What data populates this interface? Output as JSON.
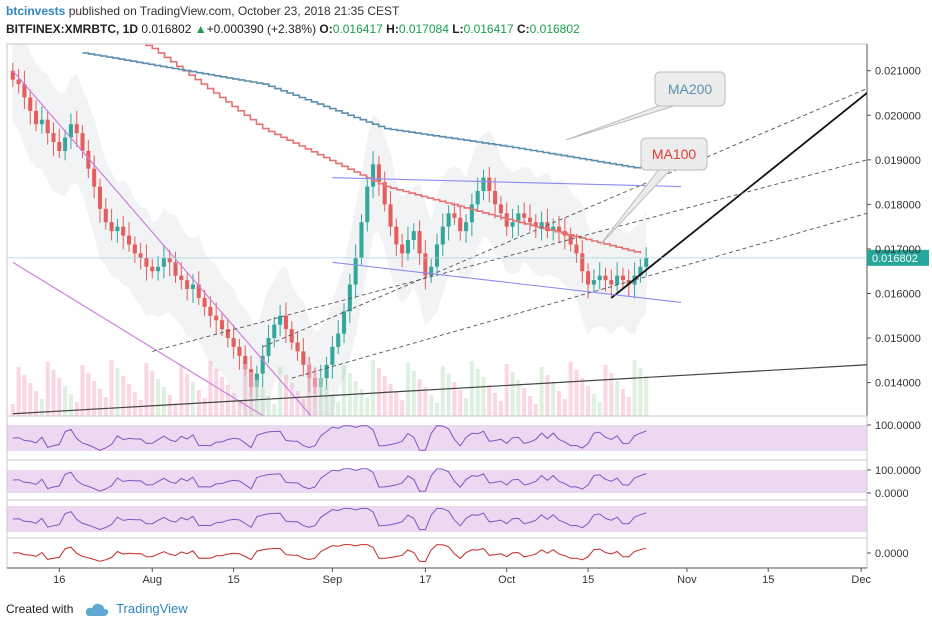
{
  "header": {
    "author": "btcinvests",
    "published_text": "published on TradingView.com, October 23, 2018 21:35 CEST",
    "symbol": "BITFINEX:XMRBTC, 1D",
    "last": "0.016802",
    "change": "+0.000390 (+2.38%)",
    "open_label": "O:",
    "open": "0.016417",
    "high_label": "H:",
    "high": "0.017084",
    "low_label": "L:",
    "low": "0.016417",
    "close_label": "C:",
    "close": "0.016802"
  },
  "footer": {
    "created_with": "Created with",
    "brand": "TradingView"
  },
  "colors": {
    "up": "#26a69a",
    "down": "#ef5350",
    "ma100": "#e57373",
    "ma200": "#5b8fb0",
    "price_tag": "#26a69a",
    "oscillator_band": "#e1bee7",
    "channel": "#8c8cf2"
  },
  "chart_data": {
    "type": "candlestick",
    "y_axis": {
      "ticks": [
        "0.021000",
        "0.020000",
        "0.019000",
        "0.018000",
        "0.017000",
        "0.016000",
        "0.015000",
        "0.014000"
      ],
      "tick_values": [
        0.021,
        0.02,
        0.019,
        0.018,
        0.017,
        0.016,
        0.015,
        0.014
      ],
      "range": [
        0.01325,
        0.0216
      ]
    },
    "x_axis": {
      "ticks": [
        "16",
        "Aug",
        "15",
        "Sep",
        "17",
        "Oct",
        "15",
        "Nov",
        "15",
        "Dec"
      ],
      "tick_dates": [
        "2018-07-16",
        "2018-08-01",
        "2018-08-15",
        "2018-09-01",
        "2018-09-17",
        "2018-10-01",
        "2018-10-15",
        "2018-11-01",
        "2018-11-15",
        "2018-12-01"
      ],
      "range": [
        "2018-07-07",
        "2018-12-02"
      ]
    },
    "last_price_label": "0.016802",
    "annotations": [
      {
        "text": "MA200",
        "color": "#5b8fb0"
      },
      {
        "text": "MA100",
        "color": "#e53935"
      }
    ],
    "close_series": {
      "start": "2018-07-08",
      "values": [
        0.0208,
        0.0207,
        0.0204,
        0.0201,
        0.0198,
        0.0199,
        0.0196,
        0.0194,
        0.0192,
        0.0195,
        0.0198,
        0.0196,
        0.0192,
        0.0188,
        0.0184,
        0.0179,
        0.0176,
        0.0174,
        0.0175,
        0.0173,
        0.0171,
        0.0169,
        0.0168,
        0.0166,
        0.0165,
        0.0166,
        0.0168,
        0.0167,
        0.0164,
        0.0163,
        0.0161,
        0.0162,
        0.0159,
        0.0157,
        0.0155,
        0.0154,
        0.0152,
        0.015,
        0.0148,
        0.0146,
        0.0143,
        0.0139,
        0.0142,
        0.0146,
        0.015,
        0.0153,
        0.0155,
        0.0152,
        0.0149,
        0.0147,
        0.0144,
        0.0141,
        0.0139,
        0.0141,
        0.0144,
        0.0148,
        0.0151,
        0.0156,
        0.0162,
        0.0168,
        0.0176,
        0.0184,
        0.0189,
        0.0185,
        0.018,
        0.0175,
        0.0171,
        0.0169,
        0.0172,
        0.0174,
        0.0169,
        0.0164,
        0.0166,
        0.0171,
        0.0175,
        0.0178,
        0.0177,
        0.0174,
        0.0176,
        0.018,
        0.0183,
        0.0186,
        0.0183,
        0.018,
        0.0178,
        0.0175,
        0.0176,
        0.0178,
        0.0177,
        0.0176,
        0.0175,
        0.0176,
        0.0174,
        0.0175,
        0.0174,
        0.0173,
        0.0171,
        0.0169,
        0.0165,
        0.0162,
        0.0163,
        0.0164,
        0.0163,
        0.0162,
        0.0164,
        0.0163,
        0.0162,
        0.0164,
        0.0166,
        0.0168
      ]
    },
    "moving_averages": [
      {
        "name": "MA100",
        "points": [
          [
            "2018-07-08",
            0.023
          ],
          [
            "2018-08-01",
            0.0215
          ],
          [
            "2018-08-20",
            0.0197
          ],
          [
            "2018-09-10",
            0.0184
          ],
          [
            "2018-09-30",
            0.0177
          ],
          [
            "2018-10-24",
            0.0169
          ]
        ]
      },
      {
        "name": "MA200",
        "points": [
          [
            "2018-07-20",
            0.0214
          ],
          [
            "2018-08-20",
            0.0207
          ],
          [
            "2018-09-10",
            0.0197
          ],
          [
            "2018-10-01",
            0.0193
          ],
          [
            "2018-10-24",
            0.0188
          ]
        ]
      }
    ],
    "indicator_panes": [
      {
        "id": "rsi-pane",
        "ticks": [
          "100.0000"
        ]
      },
      {
        "id": "stoch-pane",
        "ticks": [
          "100.0000",
          "0.0000"
        ]
      },
      {
        "id": "osc-pane",
        "ticks": []
      },
      {
        "id": "macd-pane",
        "ticks": [
          "0.0000"
        ]
      }
    ],
    "grid": false,
    "legend": "none"
  }
}
